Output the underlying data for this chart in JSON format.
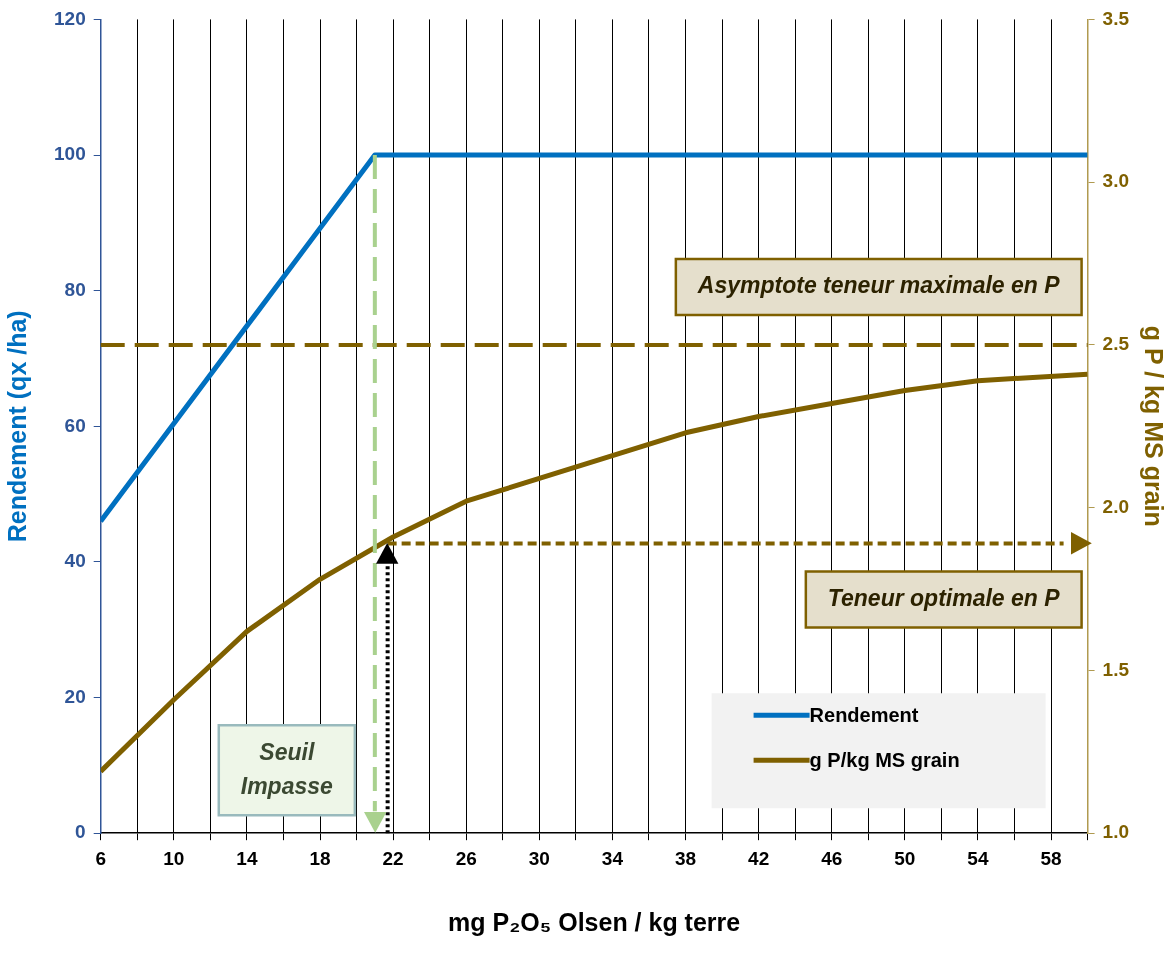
{
  "chart_data": {
    "type": "line",
    "xlabel": "mg P₂O₅ Olsen / kg terre",
    "ylabel": "Rendement (qx /ha)",
    "y2label": "g P / kg MS grain",
    "series": [
      {
        "name": "Rendement",
        "color": "#0070c0",
        "axis": "y",
        "x": [
          6,
          21,
          60
        ],
        "values": [
          46,
          100,
          100
        ]
      },
      {
        "name": "g P/kg MS grain",
        "color": "#7f6000",
        "axis": "y2",
        "x": [
          6,
          10,
          14,
          18,
          22,
          26,
          30,
          34,
          38,
          42,
          46,
          50,
          54,
          60
        ],
        "values": [
          1.19,
          1.41,
          1.62,
          1.78,
          1.91,
          2.02,
          2.09,
          2.16,
          2.23,
          2.28,
          2.32,
          2.36,
          2.39,
          2.41
        ]
      }
    ],
    "xlim": [
      6,
      60
    ],
    "xticks": [
      6,
      {
        "value": 8,
        "label": null
      },
      10,
      {
        "value": 12,
        "label": null
      },
      14,
      {
        "value": 16,
        "label": null
      },
      18,
      {
        "value": 20,
        "label": null
      },
      22,
      {
        "value": 24,
        "label": null
      },
      26,
      {
        "value": 28,
        "label": null
      },
      30,
      {
        "value": 32,
        "label": null
      },
      34,
      {
        "value": 36,
        "label": null
      },
      38,
      {
        "value": 40,
        "label": null
      },
      42,
      {
        "value": 44,
        "label": null
      },
      46,
      {
        "value": 48,
        "label": null
      },
      50,
      {
        "value": 52,
        "label": null
      },
      54,
      {
        "value": 56,
        "label": null
      },
      58,
      {
        "value": 60,
        "label": null
      }
    ],
    "ylim": [
      0,
      120
    ],
    "yticks": [
      0,
      20,
      40,
      60,
      80,
      100,
      120
    ],
    "y2lim": [
      1.0,
      3.5
    ],
    "y2ticks": [
      {
        "value": 1.0,
        "label": "1.0"
      },
      {
        "value": 1.5,
        "label": "1.5"
      },
      {
        "value": 2.0,
        "label": "2.0"
      },
      {
        "value": 2.5,
        "label": "2.5"
      },
      {
        "value": 3.0,
        "label": "3.0"
      },
      {
        "value": 3.5,
        "label": "3.5"
      }
    ],
    "ref_lines": [
      {
        "axis": "y2",
        "value": 2.5,
        "label": "Asymptote teneur maximale en P",
        "color": "#7f6000",
        "line_style": "dashed"
      },
      {
        "axis": "y2",
        "value": 1.89,
        "label": "Teneur optimale en P",
        "color": "#7f6000",
        "line_style": "dashed"
      },
      {
        "axis": "x",
        "value": 21,
        "label": "Seuil Impasse",
        "color": "#a9d18e",
        "line_style": "dashed"
      },
      {
        "axis": "x",
        "value": 21.7,
        "color": "#000000",
        "line_style": "dotted"
      }
    ],
    "grid": "x",
    "legend": "bottom right",
    "marker": "none",
    "line_style": "solid"
  }
}
